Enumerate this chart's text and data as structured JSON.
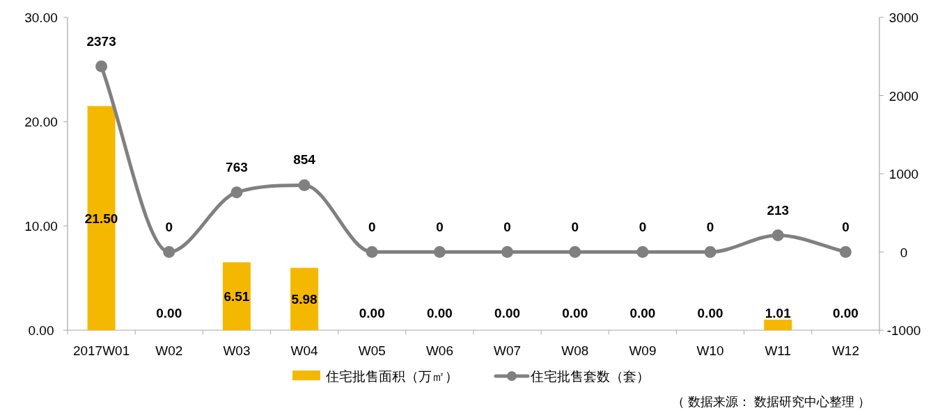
{
  "chart_data": {
    "type": "bar",
    "categories": [
      "2017W01",
      "W02",
      "W03",
      "W04",
      "W05",
      "W06",
      "W07",
      "W08",
      "W09",
      "W10",
      "W11",
      "W12"
    ],
    "series": [
      {
        "name": "住宅批售面积（万㎡）",
        "color": "#f5b800",
        "values": [
          21.5,
          0,
          6.51,
          5.98,
          0,
          0,
          0,
          0,
          0,
          0,
          1.01,
          0
        ],
        "value_labels": [
          "21.50",
          "0.00",
          "6.51",
          "5.98",
          "0.00",
          "0.00",
          "0.00",
          "0.00",
          "0.00",
          "0.00",
          "1.01",
          "0.00"
        ]
      },
      {
        "name": "住宅批售套数（套）",
        "type": "line",
        "axis": "y2",
        "color": "#808080",
        "values": [
          2373,
          0,
          763,
          854,
          0,
          0,
          0,
          0,
          0,
          0,
          213,
          0
        ],
        "value_labels": [
          "2373",
          "0",
          "763",
          "854",
          "0",
          "0",
          "0",
          "0",
          "0",
          "0",
          "213",
          "0"
        ]
      }
    ],
    "ylim": [
      0,
      30
    ],
    "yticks": [
      {
        "value": 0,
        "label": "0.00"
      },
      {
        "value": 10,
        "label": "10.00"
      },
      {
        "value": 20,
        "label": "20.00"
      },
      {
        "value": 30,
        "label": "30.00"
      }
    ],
    "y2lim": [
      -1000,
      3000
    ],
    "y2ticks": [
      -1000,
      0,
      1000,
      2000,
      3000
    ],
    "grid": false,
    "legend": "bottom",
    "marker": "circle",
    "line_style": "solid",
    "annotations": [
      "（ 数据来源： 数据研究中心整理 ）"
    ]
  }
}
